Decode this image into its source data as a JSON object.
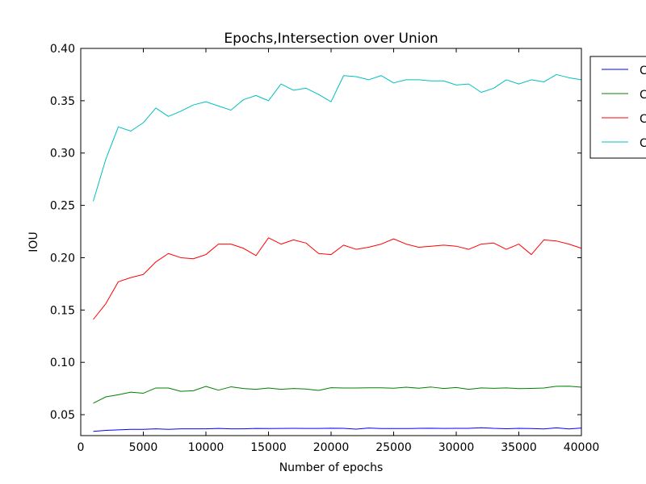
{
  "chart_data": {
    "type": "line",
    "title": "Epochs,Intersection over Union",
    "xlabel": "Number of epochs",
    "ylabel": "IOU",
    "xlim": [
      0,
      40000
    ],
    "ylim": [
      0.03,
      0.4
    ],
    "xticks": [
      0,
      5000,
      10000,
      15000,
      20000,
      25000,
      30000,
      35000,
      40000
    ],
    "xtick_labels": [
      "0",
      "5000",
      "10000",
      "15000",
      "20000",
      "25000",
      "30000",
      "35000",
      "40000"
    ],
    "yticks": [
      0.05,
      0.1,
      0.15,
      0.2,
      0.25,
      0.3,
      0.35,
      0.4
    ],
    "ytick_labels": [
      "0.05",
      "0.10",
      "0.15",
      "0.20",
      "0.25",
      "0.30",
      "0.35",
      "0.40"
    ],
    "grid": false,
    "legend_position": "outside-top-right",
    "x": [
      1000,
      2000,
      3000,
      4000,
      5000,
      6000,
      7000,
      8000,
      9000,
      10000,
      11000,
      12000,
      13000,
      14000,
      15000,
      16000,
      17000,
      18000,
      19000,
      20000,
      21000,
      22000,
      23000,
      24000,
      25000,
      26000,
      27000,
      28000,
      29000,
      30000,
      31000,
      32000,
      33000,
      34000,
      35000,
      36000,
      37000,
      38000,
      39000,
      40000
    ],
    "series": [
      {
        "name": "C",
        "color": "#0000ff",
        "values": [
          0.034,
          0.035,
          0.0355,
          0.036,
          0.036,
          0.0365,
          0.036,
          0.0365,
          0.0365,
          0.0365,
          0.0368,
          0.0365,
          0.0365,
          0.0368,
          0.0367,
          0.0368,
          0.0369,
          0.0368,
          0.0368,
          0.037,
          0.0369,
          0.0362,
          0.0372,
          0.0367,
          0.0367,
          0.0367,
          0.0369,
          0.037,
          0.0368,
          0.0369,
          0.0369,
          0.0375,
          0.0369,
          0.0366,
          0.0369,
          0.0367,
          0.0364,
          0.0374,
          0.0364,
          0.0372
        ]
      },
      {
        "name": "C",
        "color": "#008000",
        "values": [
          0.061,
          0.067,
          0.069,
          0.0715,
          0.0705,
          0.0755,
          0.0755,
          0.0723,
          0.0729,
          0.077,
          0.0734,
          0.0766,
          0.075,
          0.0742,
          0.0755,
          0.0742,
          0.075,
          0.0745,
          0.0732,
          0.0758,
          0.0755,
          0.0755,
          0.0757,
          0.0757,
          0.0753,
          0.0762,
          0.0753,
          0.0764,
          0.075,
          0.076,
          0.0742,
          0.0756,
          0.0752,
          0.0756,
          0.0749,
          0.0751,
          0.0755,
          0.0771,
          0.0772,
          0.0763
        ]
      },
      {
        "name": "C",
        "color": "#ff0000",
        "values": [
          0.141,
          0.156,
          0.177,
          0.181,
          0.184,
          0.196,
          0.204,
          0.2,
          0.199,
          0.203,
          0.213,
          0.213,
          0.209,
          0.202,
          0.219,
          0.213,
          0.217,
          0.214,
          0.204,
          0.203,
          0.212,
          0.208,
          0.21,
          0.213,
          0.218,
          0.213,
          0.21,
          0.211,
          0.212,
          0.211,
          0.208,
          0.213,
          0.214,
          0.208,
          0.213,
          0.203,
          0.217,
          0.216,
          0.213,
          0.209
        ]
      },
      {
        "name": "C",
        "color": "#00bfbf",
        "values": [
          0.254,
          0.294,
          0.325,
          0.321,
          0.329,
          0.343,
          0.335,
          0.34,
          0.346,
          0.349,
          0.345,
          0.341,
          0.351,
          0.355,
          0.35,
          0.366,
          0.36,
          0.362,
          0.356,
          0.349,
          0.374,
          0.373,
          0.37,
          0.374,
          0.367,
          0.37,
          0.37,
          0.369,
          0.369,
          0.365,
          0.366,
          0.358,
          0.362,
          0.37,
          0.366,
          0.37,
          0.368,
          0.375,
          0.372,
          0.37
        ]
      }
    ]
  }
}
